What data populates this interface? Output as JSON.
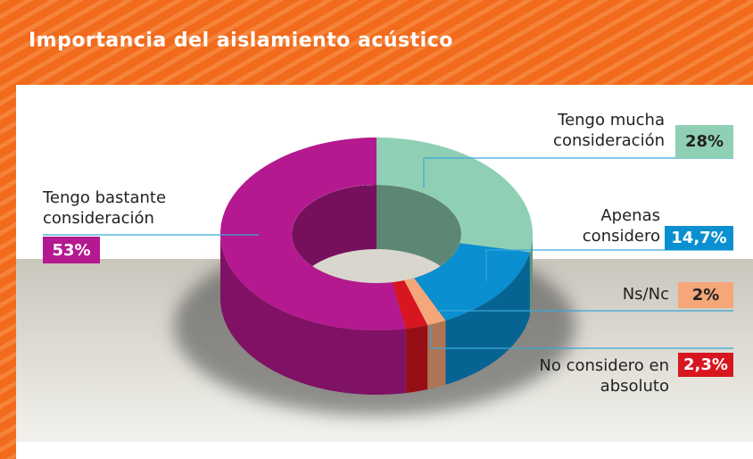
{
  "chart_data": {
    "type": "pie",
    "title": "Importancia del aislamiento acústico",
    "categories": [
      "Tengo mucha consideración",
      "Apenas considero",
      "Ns/Nc",
      "No considero en absoluto",
      "Tengo bastante consideración"
    ],
    "values": [
      28,
      14.7,
      2,
      2.3,
      53
    ],
    "value_labels": [
      "28%",
      "14,7%",
      "2%",
      "2,3%",
      "53%"
    ],
    "colors": [
      "#8fd0b4",
      "#0a8fd0",
      "#f5a77a",
      "#d7161f",
      "#b5198f"
    ]
  }
}
